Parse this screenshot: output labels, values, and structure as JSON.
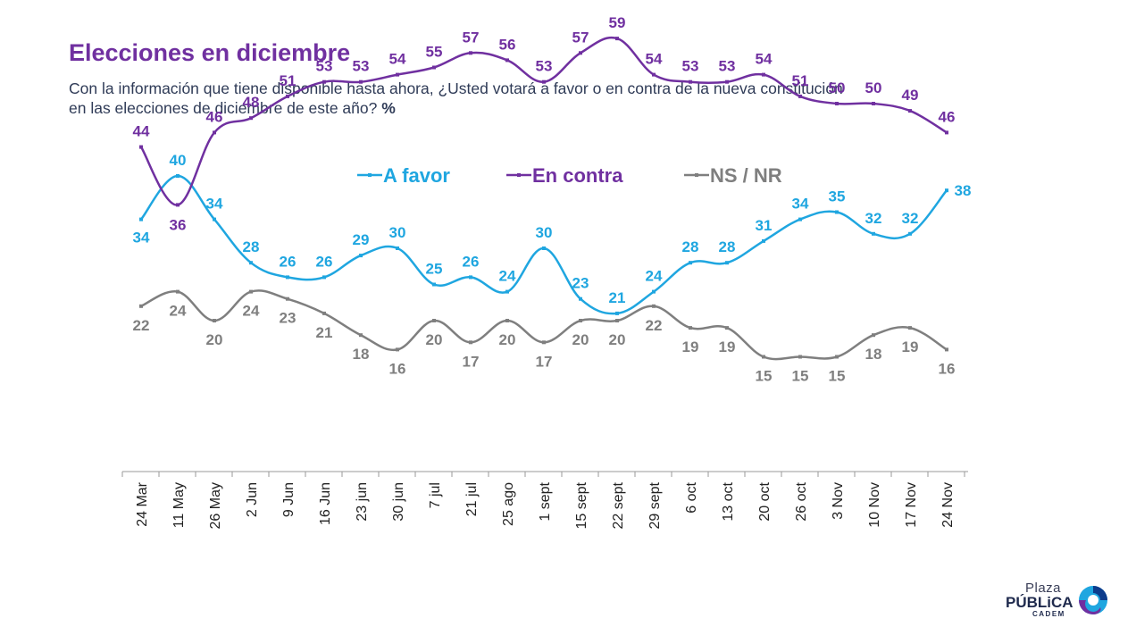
{
  "header": {
    "title": "Elecciones en diciembre",
    "subtitle_line1": "Con la información que tiene disponible hasta ahora, ¿Usted votará a favor o en contra de la nueva constitución",
    "subtitle_line2": "en las elecciones de diciembre de este año?",
    "unit": "%"
  },
  "logo": {
    "line1": "Plaza",
    "line2": "PÚBLiCA",
    "line3": "CADEM"
  },
  "chart_data": {
    "type": "line",
    "legend_position": "top-center",
    "grid": false,
    "x": [
      "24 Mar",
      "11 May",
      "26 May",
      "2 Jun",
      "9 Jun",
      "16 Jun",
      "23 jun",
      "30 jun",
      "7 jul",
      "21 jul",
      "25 ago",
      "1 sept",
      "15 sept",
      "22 sept",
      "29 sept",
      "6 oct",
      "13 oct",
      "20 oct",
      "26 oct",
      "3 Nov",
      "10 Nov",
      "17 Nov",
      "24 Nov"
    ],
    "series": [
      {
        "name": "A favor",
        "color": "#1fa6e0",
        "values": [
          34,
          40,
          34,
          28,
          26,
          26,
          29,
          30,
          25,
          26,
          24,
          30,
          23,
          21,
          24,
          28,
          28,
          31,
          34,
          35,
          32,
          32,
          38
        ]
      },
      {
        "name": "En contra",
        "color": "#7030a0",
        "values": [
          44,
          36,
          46,
          48,
          51,
          53,
          53,
          54,
          55,
          57,
          56,
          53,
          57,
          59,
          54,
          53,
          53,
          54,
          51,
          50,
          50,
          49,
          46
        ]
      },
      {
        "name": "NS / NR",
        "color": "#7f7f7f",
        "values": [
          22,
          24,
          20,
          24,
          23,
          21,
          18,
          16,
          20,
          17,
          20,
          17,
          20,
          20,
          22,
          19,
          19,
          15,
          15,
          15,
          18,
          19,
          16
        ]
      }
    ]
  }
}
